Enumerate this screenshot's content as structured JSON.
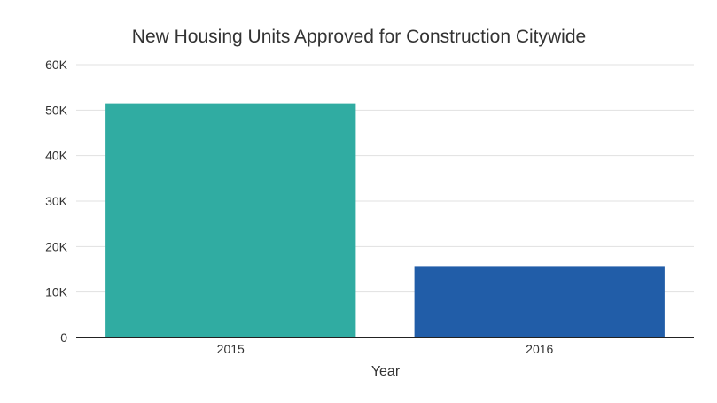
{
  "chart_data": {
    "type": "bar",
    "title": "New Housing Units Approved for Construction Citywide",
    "xlabel": "Year",
    "ylabel": "",
    "categories": [
      "2015",
      "2016"
    ],
    "values": [
      51500,
      15700
    ],
    "colors": [
      "#30ACA2",
      "#215DA8"
    ],
    "ylim": [
      0,
      60000
    ],
    "yticks": [
      0,
      10000,
      20000,
      30000,
      40000,
      50000,
      60000
    ],
    "ytick_labels": [
      "0",
      "10K",
      "20K",
      "30K",
      "40K",
      "50K",
      "60K"
    ],
    "grid": true,
    "legend": "none"
  }
}
